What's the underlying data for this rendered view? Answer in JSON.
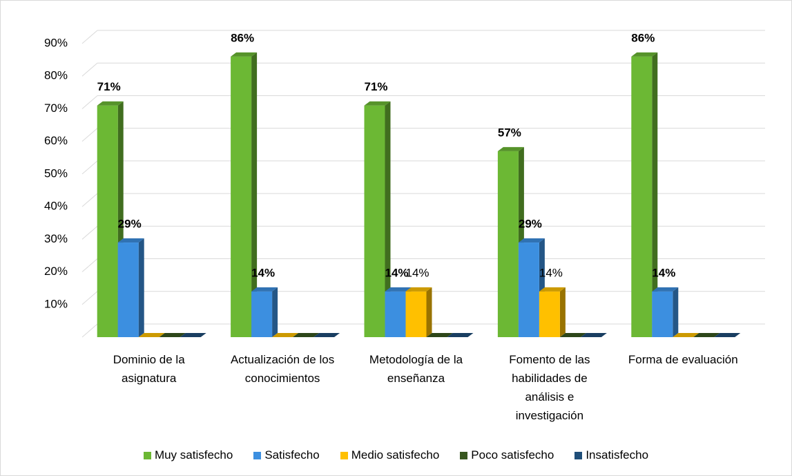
{
  "chart_data": {
    "type": "bar3d",
    "categories": [
      "Dominio de la asignatura",
      "Actualización de los conocimientos",
      "Metodología de la enseñanza",
      "Fomento de las habilidades de análisis e investigación",
      "Forma de evaluación"
    ],
    "series": [
      {
        "name": "Muy satisfecho",
        "color": "#6cb834",
        "label_bold": true,
        "values": [
          71,
          86,
          71,
          57,
          86
        ],
        "value_labels": [
          "71%",
          "86%",
          "71%",
          "57%",
          "86%"
        ]
      },
      {
        "name": "Satisfecho",
        "color": "#3c8fe0",
        "label_bold": true,
        "values": [
          29,
          14,
          14,
          29,
          14
        ],
        "value_labels": [
          "29%",
          "14%",
          "14%",
          "29%",
          "14%"
        ]
      },
      {
        "name": "Medio satisfecho",
        "color": "#ffc000",
        "label_bold": false,
        "values": [
          0,
          0,
          14,
          14,
          0
        ],
        "value_labels": [
          null,
          null,
          "14%",
          "14%",
          null
        ]
      },
      {
        "name": "Poco satisfecho",
        "color": "#38571f",
        "label_bold": false,
        "values": [
          0,
          0,
          0,
          0,
          0
        ]
      },
      {
        "name": "Insatisfecho",
        "color": "#1f4e79",
        "label_bold": false,
        "values": [
          0,
          0,
          0,
          0,
          0
        ]
      }
    ],
    "ylim": [
      0,
      90
    ],
    "yticks": [
      {
        "value": 10,
        "label": "10%"
      },
      {
        "value": 20,
        "label": "20%"
      },
      {
        "value": 30,
        "label": "30%"
      },
      {
        "value": 40,
        "label": "40%"
      },
      {
        "value": 50,
        "label": "50%"
      },
      {
        "value": 60,
        "label": "60%"
      },
      {
        "value": 70,
        "label": "70%"
      },
      {
        "value": 80,
        "label": "80%"
      },
      {
        "value": 90,
        "label": "90%"
      }
    ],
    "grid": true,
    "legend": "bottom"
  }
}
